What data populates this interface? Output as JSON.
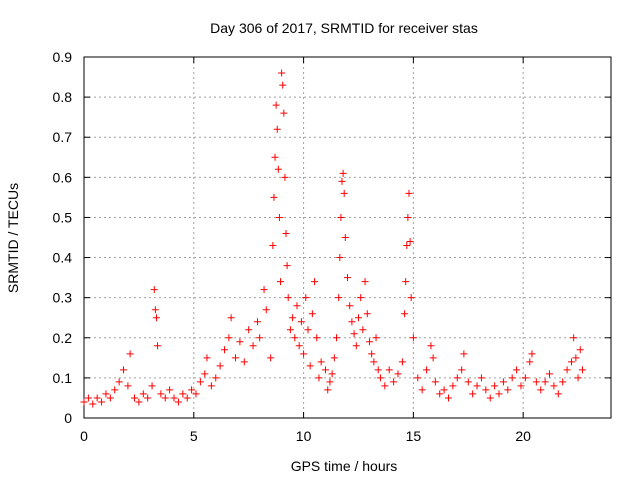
{
  "chart_data": {
    "type": "scatter",
    "title": "Day 306 of 2017, SRMTID for receiver stas",
    "xlabel": "GPS time / hours",
    "ylabel": "SRMTID / TECUs",
    "xlim": [
      0,
      24
    ],
    "ylim": [
      0,
      0.9
    ],
    "xticks": [
      0,
      5,
      10,
      15,
      20
    ],
    "xtick_labels": [
      "0",
      "5",
      "10",
      "15",
      "20"
    ],
    "yticks": [
      0,
      0.1,
      0.2,
      0.3,
      0.4,
      0.5,
      0.6,
      0.7,
      0.8,
      0.9
    ],
    "ytick_labels": [
      "0",
      "0.1",
      "0.2",
      "0.3",
      "0.4",
      "0.5",
      "0.6",
      "0.7",
      "0.8",
      "0.9"
    ],
    "grid": true,
    "marker": "+",
    "color": "#ff0000",
    "series": [
      {
        "name": "SRMTID",
        "points": [
          [
            0.0,
            0.04
          ],
          [
            0.2,
            0.05
          ],
          [
            0.4,
            0.035
          ],
          [
            0.6,
            0.05
          ],
          [
            0.8,
            0.04
          ],
          [
            1.0,
            0.06
          ],
          [
            1.2,
            0.05
          ],
          [
            1.4,
            0.07
          ],
          [
            1.6,
            0.09
          ],
          [
            1.8,
            0.12
          ],
          [
            2.0,
            0.08
          ],
          [
            2.1,
            0.16
          ],
          [
            2.3,
            0.05
          ],
          [
            2.5,
            0.04
          ],
          [
            2.7,
            0.06
          ],
          [
            2.9,
            0.05
          ],
          [
            3.1,
            0.08
          ],
          [
            3.2,
            0.32
          ],
          [
            3.25,
            0.27
          ],
          [
            3.3,
            0.25
          ],
          [
            3.35,
            0.18
          ],
          [
            3.5,
            0.06
          ],
          [
            3.7,
            0.05
          ],
          [
            3.9,
            0.07
          ],
          [
            4.1,
            0.05
          ],
          [
            4.3,
            0.04
          ],
          [
            4.5,
            0.06
          ],
          [
            4.7,
            0.05
          ],
          [
            4.9,
            0.07
          ],
          [
            5.1,
            0.06
          ],
          [
            5.3,
            0.09
          ],
          [
            5.5,
            0.11
          ],
          [
            5.6,
            0.15
          ],
          [
            5.8,
            0.08
          ],
          [
            6.0,
            0.1
          ],
          [
            6.2,
            0.13
          ],
          [
            6.4,
            0.17
          ],
          [
            6.6,
            0.2
          ],
          [
            6.7,
            0.25
          ],
          [
            6.9,
            0.15
          ],
          [
            7.1,
            0.19
          ],
          [
            7.3,
            0.14
          ],
          [
            7.5,
            0.22
          ],
          [
            7.7,
            0.18
          ],
          [
            7.9,
            0.24
          ],
          [
            8.0,
            0.2
          ],
          [
            8.2,
            0.32
          ],
          [
            8.3,
            0.27
          ],
          [
            8.5,
            0.15
          ],
          [
            8.6,
            0.43
          ],
          [
            8.65,
            0.55
          ],
          [
            8.7,
            0.65
          ],
          [
            8.75,
            0.78
          ],
          [
            8.8,
            0.72
          ],
          [
            8.85,
            0.62
          ],
          [
            8.9,
            0.5
          ],
          [
            8.95,
            0.34
          ],
          [
            9.0,
            0.86
          ],
          [
            9.05,
            0.83
          ],
          [
            9.1,
            0.76
          ],
          [
            9.15,
            0.6
          ],
          [
            9.2,
            0.46
          ],
          [
            9.25,
            0.38
          ],
          [
            9.3,
            0.3
          ],
          [
            9.4,
            0.22
          ],
          [
            9.5,
            0.25
          ],
          [
            9.6,
            0.2
          ],
          [
            9.7,
            0.28
          ],
          [
            9.8,
            0.18
          ],
          [
            9.9,
            0.24
          ],
          [
            10.0,
            0.16
          ],
          [
            10.1,
            0.3
          ],
          [
            10.2,
            0.22
          ],
          [
            10.3,
            0.13
          ],
          [
            10.4,
            0.26
          ],
          [
            10.5,
            0.34
          ],
          [
            10.6,
            0.2
          ],
          [
            10.7,
            0.1
          ],
          [
            10.8,
            0.14
          ],
          [
            11.0,
            0.12
          ],
          [
            11.1,
            0.07
          ],
          [
            11.2,
            0.09
          ],
          [
            11.3,
            0.11
          ],
          [
            11.4,
            0.15
          ],
          [
            11.5,
            0.2
          ],
          [
            11.6,
            0.3
          ],
          [
            11.65,
            0.4
          ],
          [
            11.7,
            0.5
          ],
          [
            11.75,
            0.59
          ],
          [
            11.8,
            0.61
          ],
          [
            11.85,
            0.56
          ],
          [
            11.9,
            0.45
          ],
          [
            12.0,
            0.35
          ],
          [
            12.1,
            0.28
          ],
          [
            12.2,
            0.24
          ],
          [
            12.3,
            0.21
          ],
          [
            12.4,
            0.18
          ],
          [
            12.5,
            0.25
          ],
          [
            12.6,
            0.3
          ],
          [
            12.7,
            0.22
          ],
          [
            12.8,
            0.34
          ],
          [
            12.9,
            0.26
          ],
          [
            13.0,
            0.19
          ],
          [
            13.1,
            0.16
          ],
          [
            13.2,
            0.14
          ],
          [
            13.3,
            0.2
          ],
          [
            13.4,
            0.12
          ],
          [
            13.5,
            0.1
          ],
          [
            13.7,
            0.08
          ],
          [
            13.9,
            0.12
          ],
          [
            14.1,
            0.09
          ],
          [
            14.3,
            0.11
          ],
          [
            14.5,
            0.14
          ],
          [
            14.6,
            0.26
          ],
          [
            14.65,
            0.34
          ],
          [
            14.7,
            0.43
          ],
          [
            14.75,
            0.5
          ],
          [
            14.8,
            0.56
          ],
          [
            14.85,
            0.44
          ],
          [
            14.9,
            0.3
          ],
          [
            15.0,
            0.2
          ],
          [
            15.2,
            0.1
          ],
          [
            15.4,
            0.07
          ],
          [
            15.6,
            0.12
          ],
          [
            15.8,
            0.18
          ],
          [
            15.9,
            0.15
          ],
          [
            16.0,
            0.09
          ],
          [
            16.2,
            0.06
          ],
          [
            16.4,
            0.07
          ],
          [
            16.6,
            0.05
          ],
          [
            16.8,
            0.08
          ],
          [
            17.0,
            0.1
          ],
          [
            17.2,
            0.12
          ],
          [
            17.3,
            0.16
          ],
          [
            17.5,
            0.09
          ],
          [
            17.7,
            0.06
          ],
          [
            17.9,
            0.08
          ],
          [
            18.1,
            0.1
          ],
          [
            18.3,
            0.07
          ],
          [
            18.5,
            0.05
          ],
          [
            18.7,
            0.08
          ],
          [
            18.9,
            0.06
          ],
          [
            19.1,
            0.09
          ],
          [
            19.3,
            0.07
          ],
          [
            19.5,
            0.1
          ],
          [
            19.7,
            0.12
          ],
          [
            19.9,
            0.08
          ],
          [
            20.1,
            0.1
          ],
          [
            20.3,
            0.14
          ],
          [
            20.4,
            0.16
          ],
          [
            20.6,
            0.09
          ],
          [
            20.8,
            0.07
          ],
          [
            21.0,
            0.09
          ],
          [
            21.2,
            0.11
          ],
          [
            21.4,
            0.08
          ],
          [
            21.6,
            0.06
          ],
          [
            21.8,
            0.09
          ],
          [
            22.0,
            0.12
          ],
          [
            22.2,
            0.14
          ],
          [
            22.3,
            0.2
          ],
          [
            22.4,
            0.15
          ],
          [
            22.5,
            0.1
          ],
          [
            22.6,
            0.17
          ],
          [
            22.7,
            0.12
          ]
        ]
      }
    ]
  }
}
